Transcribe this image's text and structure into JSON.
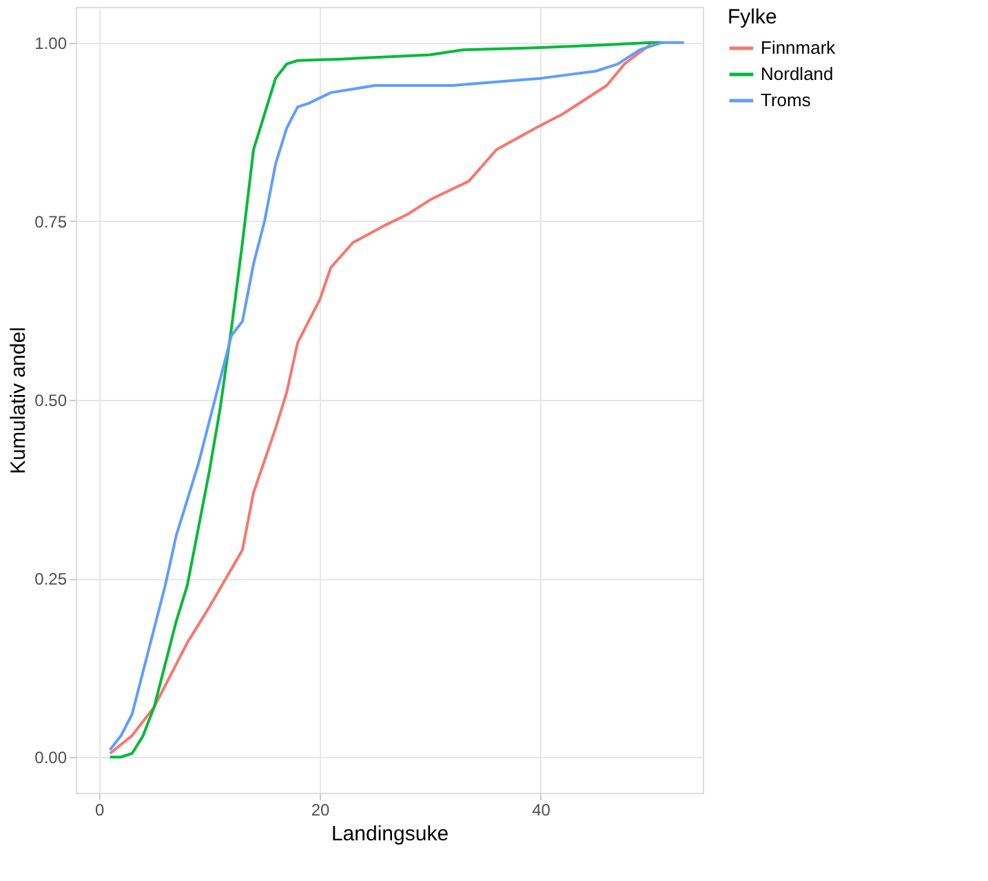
{
  "chart_data": {
    "type": "line",
    "xlabel": "Landingsuke",
    "ylabel": "Kumulativ andel",
    "legend_title": "Fylke",
    "legend": "right",
    "grid": true,
    "marker": "none",
    "line_style": "solid",
    "xlim": [
      -2.1,
      54.7
    ],
    "ylim": [
      -0.05,
      1.05
    ],
    "xticks": [
      0,
      20,
      40
    ],
    "yticks": [
      {
        "value": 0,
        "label": "0.00"
      },
      {
        "value": 0.25,
        "label": "0.25"
      },
      {
        "value": 0.5,
        "label": "0.50"
      },
      {
        "value": 0.75,
        "label": "0.75"
      },
      {
        "value": 1,
        "label": "1.00"
      }
    ],
    "series": [
      {
        "name": "Finnmark",
        "color": "#f8766d",
        "x": [
          1,
          3,
          5,
          6,
          8,
          10,
          13,
          14,
          16,
          17,
          18,
          20,
          21,
          23,
          26,
          28,
          30,
          33.5,
          36,
          39.5,
          42,
          44,
          46,
          47.6,
          50
        ],
        "values": [
          0.005,
          0.03,
          0.07,
          0.1,
          0.16,
          0.21,
          0.29,
          0.37,
          0.46,
          0.51,
          0.58,
          0.64,
          0.685,
          0.72,
          0.745,
          0.76,
          0.78,
          0.806,
          0.85,
          0.88,
          0.9,
          0.92,
          0.94,
          0.97,
          0.998
        ]
      },
      {
        "name": "Nordland",
        "color": "#00ba38",
        "x": [
          1,
          2,
          3,
          4,
          5,
          6,
          7,
          8,
          9,
          10,
          11,
          12,
          13,
          14,
          15,
          16,
          17,
          18,
          22,
          30,
          33,
          40,
          46,
          50,
          51
        ],
        "values": [
          0.0,
          0.0,
          0.005,
          0.03,
          0.07,
          0.13,
          0.19,
          0.24,
          0.32,
          0.4,
          0.49,
          0.6,
          0.72,
          0.85,
          0.9,
          0.95,
          0.97,
          0.975,
          0.977,
          0.983,
          0.99,
          0.993,
          0.997,
          1.0,
          1.0
        ]
      },
      {
        "name": "Troms",
        "color": "#619cff",
        "x": [
          1,
          2,
          3,
          4,
          5,
          6,
          7,
          8,
          9,
          10,
          11,
          12,
          13,
          14,
          15,
          16,
          17,
          18,
          19,
          21,
          25,
          32,
          40,
          45,
          47,
          49,
          51,
          53
        ],
        "values": [
          0.01,
          0.03,
          0.06,
          0.12,
          0.18,
          0.24,
          0.31,
          0.36,
          0.41,
          0.47,
          0.53,
          0.59,
          0.61,
          0.69,
          0.75,
          0.83,
          0.88,
          0.91,
          0.915,
          0.93,
          0.94,
          0.94,
          0.95,
          0.96,
          0.97,
          0.99,
          1.0,
          1.0
        ]
      }
    ]
  }
}
